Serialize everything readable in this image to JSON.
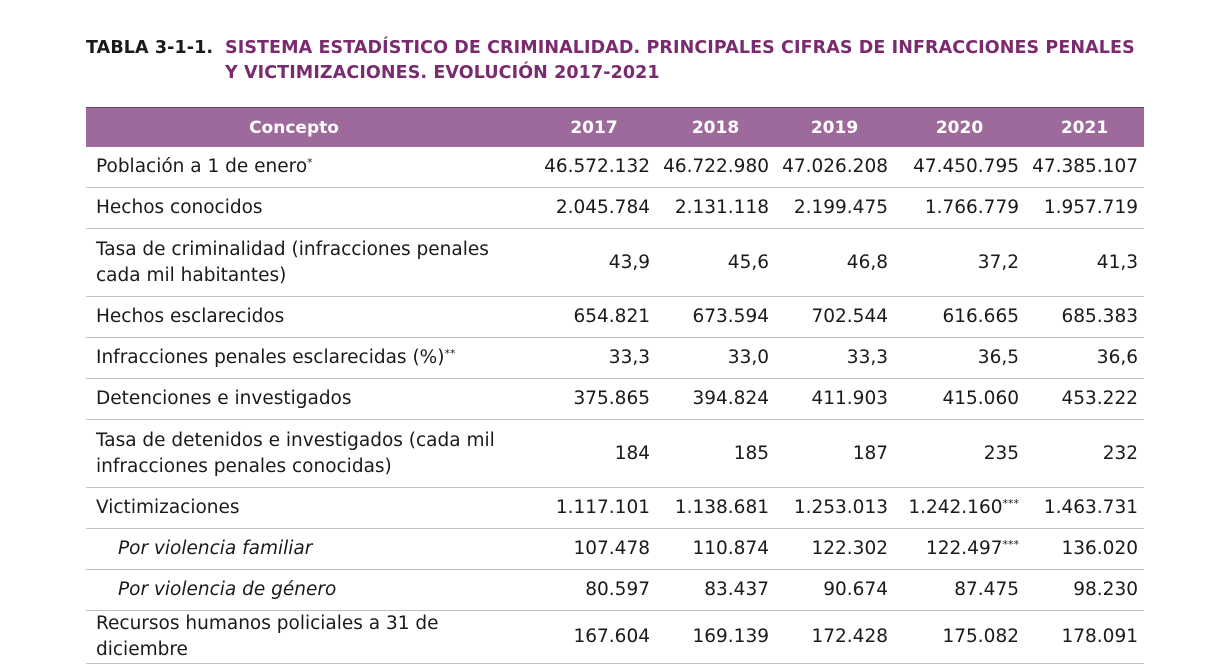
{
  "title": {
    "number": "TABLA 3-1-1.",
    "text": "SISTEMA ESTADÍSTICO DE CRIMINALIDAD. PRINCIPALES CIFRAS DE INFRACCIONES PENALES Y VICTIMIZACIONES. EVOLUCIÓN 2017-2021"
  },
  "colors": {
    "header_bg": "#9e6a9b",
    "title_color": "#7a2a6e"
  },
  "table": {
    "headers": [
      "Concepto",
      "2017",
      "2018",
      "2019",
      "2020",
      "2021"
    ],
    "rows": [
      {
        "label": "Población a 1 de enero*",
        "values": [
          "46.572.132",
          "46.722.980",
          "47.026.208",
          "47.450.795",
          "47.385.107"
        ]
      },
      {
        "label": "Hechos conocidos",
        "values": [
          "2.045.784",
          "2.131.118",
          "2.199.475",
          "1.766.779",
          "1.957.719"
        ]
      },
      {
        "label": "Tasa de criminalidad (infracciones penales cada mil habitantes)",
        "values": [
          "43,9",
          "45,6",
          "46,8",
          "37,2",
          "41,3"
        ]
      },
      {
        "label": "Hechos esclarecidos",
        "values": [
          "654.821",
          "673.594",
          "702.544",
          "616.665",
          "685.383"
        ]
      },
      {
        "label": "Infracciones penales esclarecidas (%)**",
        "values": [
          "33,3",
          "33,0",
          "33,3",
          "36,5",
          "36,6"
        ]
      },
      {
        "label": "Detenciones e investigados",
        "values": [
          "375.865",
          "394.824",
          "411.903",
          "415.060",
          "453.222"
        ]
      },
      {
        "label": "Tasa de detenidos e investigados (cada mil infracciones penales conocidas)",
        "values": [
          "184",
          "185",
          "187",
          "235",
          "232"
        ]
      },
      {
        "label": "Victimizaciones",
        "values": [
          "1.117.101",
          "1.138.681",
          "1.253.013",
          "1.242.160***",
          "1.463.731"
        ]
      },
      {
        "label": "Por violencia familiar",
        "values": [
          "107.478",
          "110.874",
          "122.302",
          "122.497***",
          "136.020"
        ]
      },
      {
        "label": "Por violencia de género",
        "values": [
          "80.597",
          "83.437",
          "90.674",
          "87.475",
          "98.230"
        ]
      },
      {
        "label": "Recursos humanos policiales a 31 de diciembre",
        "values": [
          "167.604",
          "169.139",
          "172.428",
          "175.082",
          "178.091"
        ]
      }
    ]
  }
}
